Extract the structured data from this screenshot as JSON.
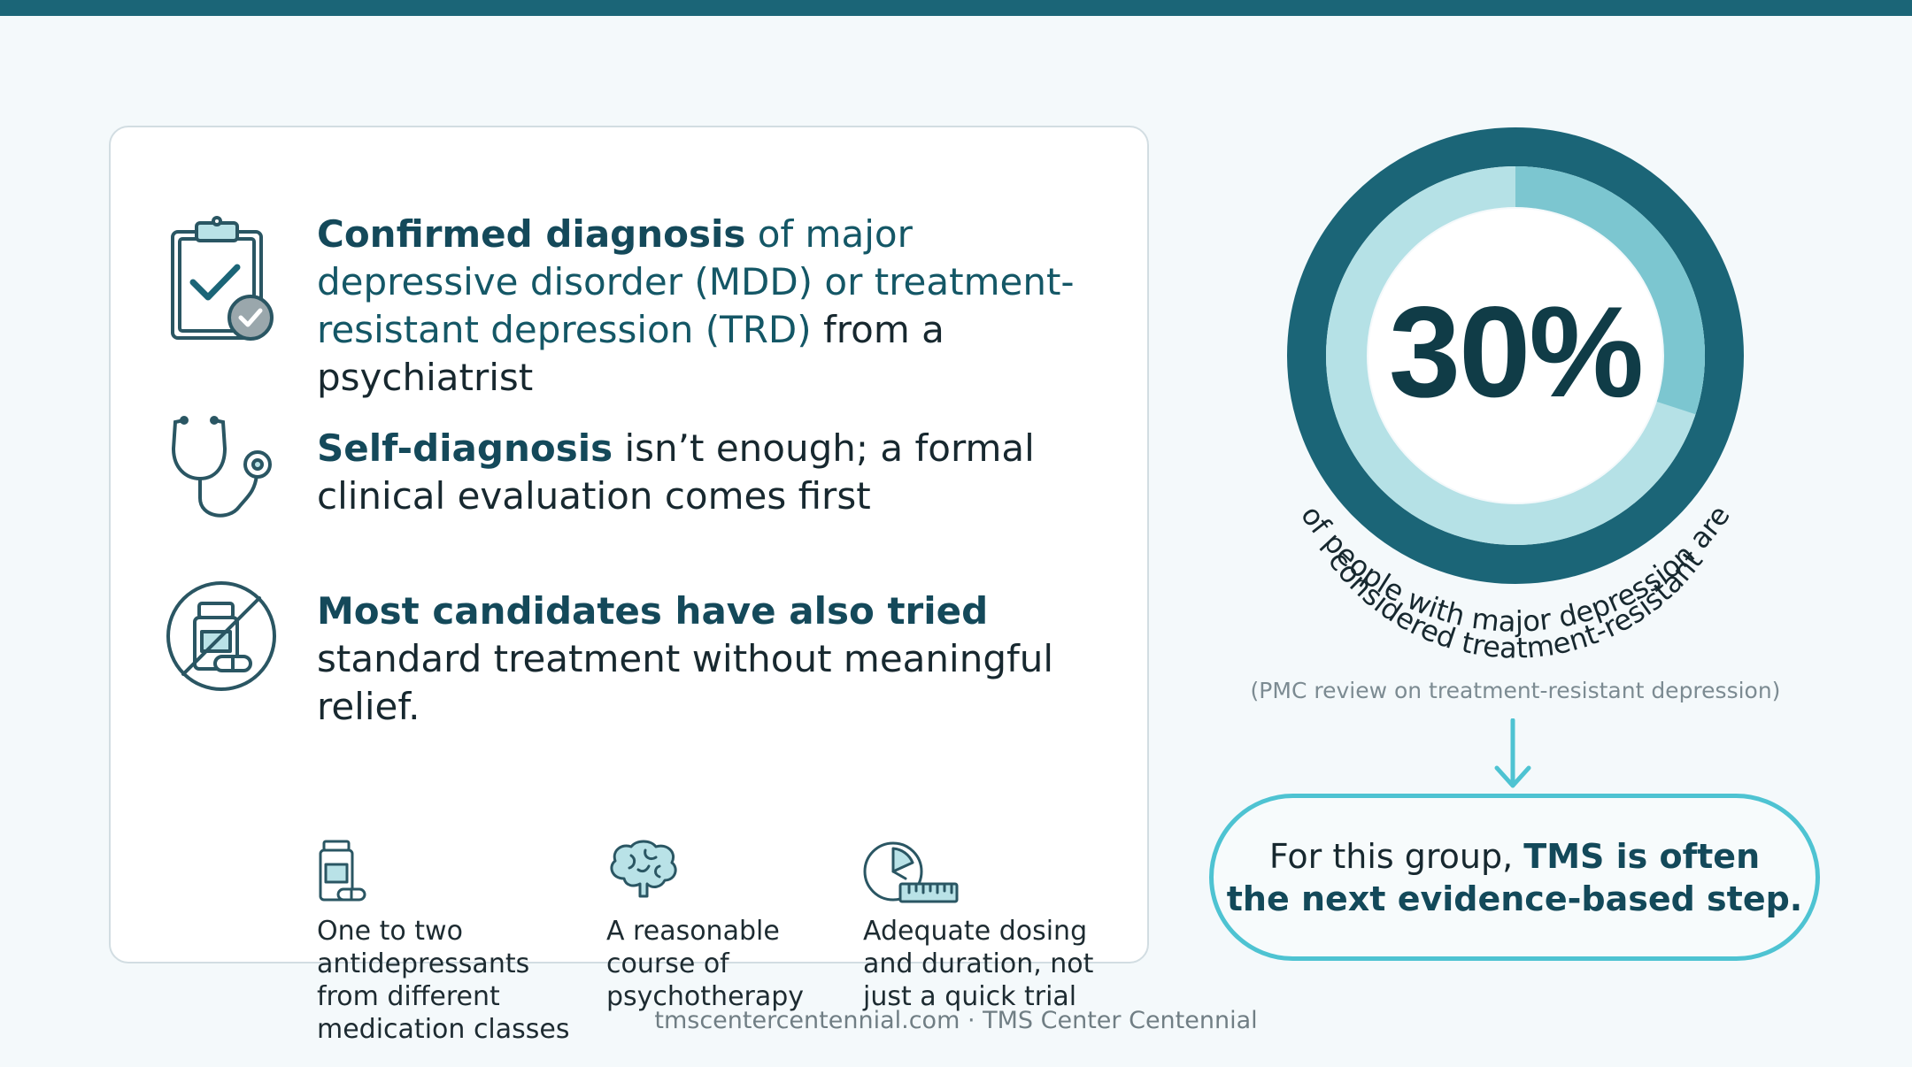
{
  "items": [
    {
      "icon": "clipboard-check-icon",
      "parts": [
        {
          "text": "Confirmed diagnosis",
          "style": "bold"
        },
        {
          "text": " of major depressive disorder (MDD) or ",
          "style": "teal"
        },
        {
          "text": "treatment-resistant depression (TRD)",
          "style": "teal"
        },
        {
          "text": " from a psychiatrist",
          "style": "plain"
        }
      ]
    },
    {
      "icon": "stethoscope-icon",
      "parts": [
        {
          "text": "Self-diagnosis",
          "style": "bold"
        },
        {
          "text": " isn’t enough; a formal clinical evaluation comes first",
          "style": "plain"
        }
      ]
    },
    {
      "icon": "no-medication-icon",
      "parts": [
        {
          "text": "Most candidates have also tried",
          "style": "bold"
        },
        {
          "text": " standard treatment without meaningful relief.",
          "style": "plain"
        }
      ]
    }
  ],
  "subitems": [
    {
      "icon": "medication-bottle-icon",
      "text": "One to two\nantidepressants\nfrom different\nmedication classes"
    },
    {
      "icon": "brain-icon",
      "text": "A reasonable\ncourse of\npsychotherapy"
    },
    {
      "icon": "clock-ruler-icon",
      "text": "Adequate dosing\nand duration, not\njust a quick trial"
    }
  ],
  "stat": {
    "value": "30%",
    "percent": 30,
    "caption_line1": "of people with major depression are",
    "caption_line2": "considered treatment-resistant",
    "source": "(PMC review on treatment-resistant depression)"
  },
  "callout": {
    "line1_plain": "For this group, ",
    "line1_bold": "TMS is often",
    "line2_bold": "the next evidence-based step."
  },
  "footer": "tmscentercentennial.com · TMS Center Centennial",
  "colors": {
    "top_bar": "#1b6577",
    "ring_dark": "#1b6577",
    "ring_light": "#b5e1e6",
    "ring_fill": "#7cc6d0",
    "accent": "#4ec3d2",
    "heading": "#14495a"
  }
}
